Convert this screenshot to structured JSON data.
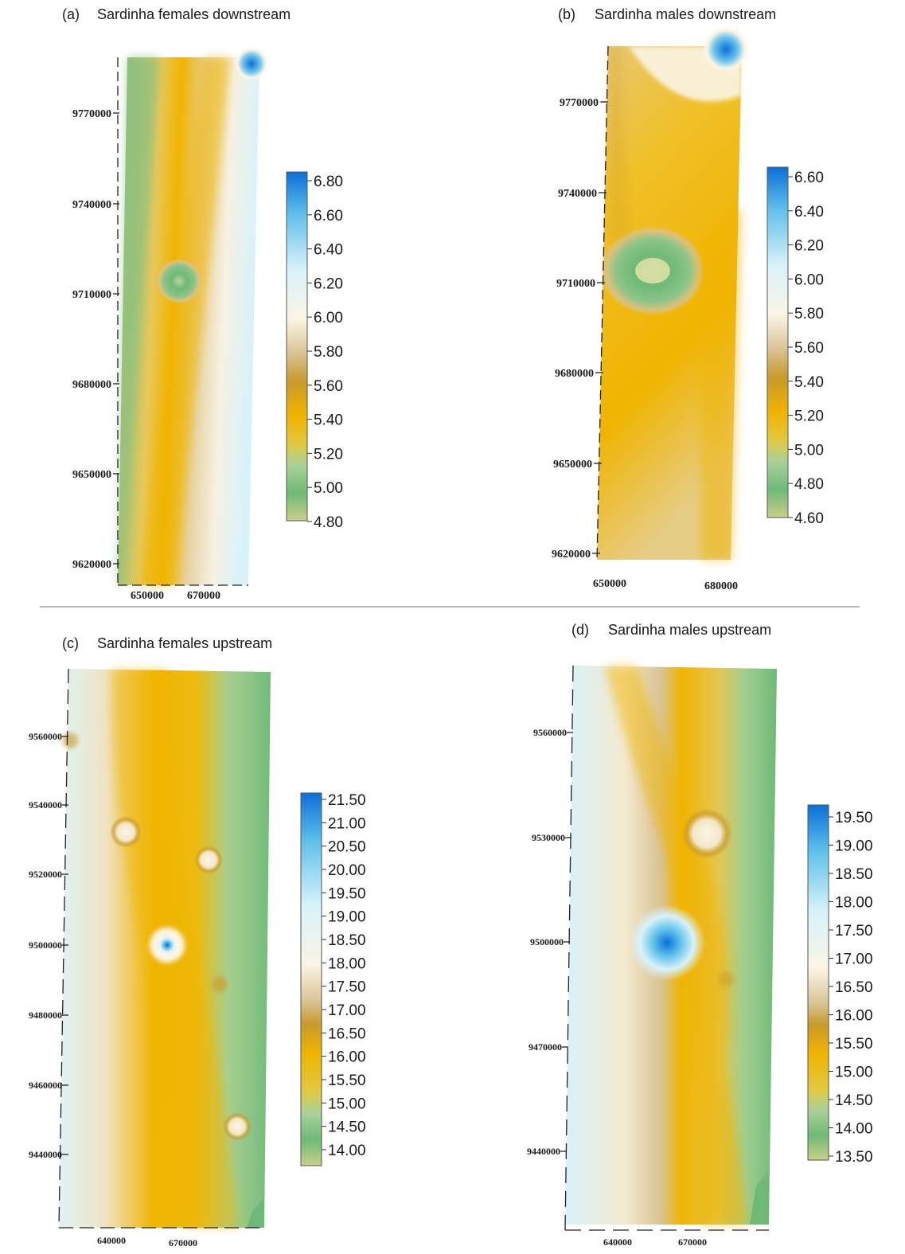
{
  "panels": [
    {
      "id": "a",
      "label": "(a)",
      "title": "Sardinha females downstream",
      "y_ticks": [
        "9770000",
        "9740000",
        "9710000",
        "9680000",
        "9650000",
        "9620000"
      ],
      "x_ticks": [
        "650000",
        "670000"
      ],
      "legend_ticks": [
        "6.80",
        "6.60",
        "6.40",
        "6.20",
        "6.00",
        "5.80",
        "5.60",
        "5.40",
        "5.20",
        "5.00",
        "4.80"
      ]
    },
    {
      "id": "b",
      "label": "(b)",
      "title": "Sardinha males downstream",
      "y_ticks": [
        "9770000",
        "9740000",
        "9710000",
        "9680000",
        "9650000",
        "9620000"
      ],
      "x_ticks": [
        "650000",
        "680000"
      ],
      "legend_ticks": [
        "6.60",
        "6.40",
        "6.20",
        "6.00",
        "5.80",
        "5.60",
        "5.40",
        "5.20",
        "5.00",
        "4.80",
        "4.60"
      ]
    },
    {
      "id": "c",
      "label": "(c)",
      "title": "Sardinha females upstream",
      "y_ticks": [
        "9560000",
        "9540000",
        "9520000",
        "9500000",
        "9480000",
        "9460000",
        "9440000"
      ],
      "x_ticks": [
        "640000",
        "670000"
      ],
      "legend_ticks": [
        "21.50",
        "21.00",
        "20.50",
        "20.00",
        "19.50",
        "19.00",
        "18.50",
        "18.00",
        "17.50",
        "17.00",
        "16.50",
        "16.00",
        "15.50",
        "15.00",
        "14.50",
        "14.00"
      ]
    },
    {
      "id": "d",
      "label": "(d)",
      "title": "Sardinha males upstream",
      "y_ticks": [
        "9560000",
        "9530000",
        "9500000",
        "9470000",
        "9440000"
      ],
      "x_ticks": [
        "640000",
        "670000"
      ],
      "legend_ticks": [
        "19.50",
        "19.00",
        "18.50",
        "18.00",
        "17.50",
        "17.00",
        "16.50",
        "16.00",
        "15.50",
        "15.00",
        "14.50",
        "14.00",
        "13.50"
      ]
    }
  ],
  "colors": {
    "green": "#6fb978",
    "green_light": "#b6d7a0",
    "orange": "#f0b400",
    "tan": "#d9c394",
    "cream": "#fbf5e6",
    "light_blue": "#d8f2fa",
    "blue": "#0a6fd8"
  }
}
